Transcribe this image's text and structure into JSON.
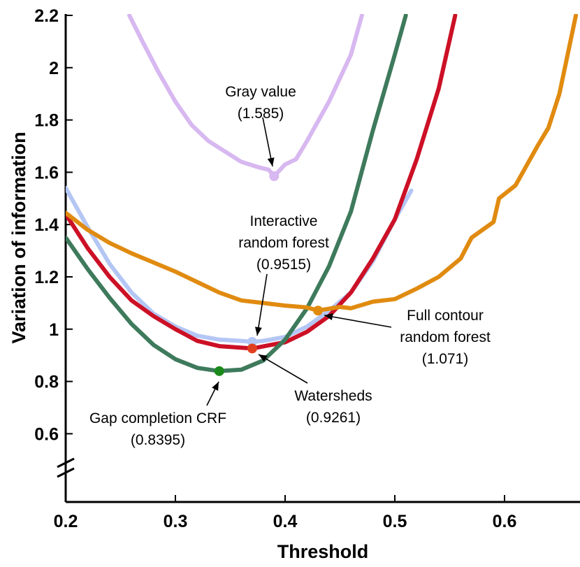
{
  "chart_data": {
    "type": "line",
    "title": "",
    "xlabel": "Threshold",
    "ylabel": "Variation of information",
    "xlim": [
      0.2,
      0.665
    ],
    "ylim": [
      0.5,
      2.2
    ],
    "axis_break": "y-axis break between 0.6 and the x-axis",
    "x_ticks": [
      "0.2",
      "0.3",
      "0.4",
      "0.5",
      "0.6"
    ],
    "y_ticks": [
      "0.6",
      "0.8",
      "1",
      "1.2",
      "1.4",
      "1.6",
      "1.8",
      "2",
      "2.2"
    ],
    "series": [
      {
        "name": "Gray value",
        "color": "#d8b8f0",
        "points": [
          [
            0.258,
            2.2
          ],
          [
            0.27,
            2.1
          ],
          [
            0.285,
            1.98
          ],
          [
            0.3,
            1.87
          ],
          [
            0.315,
            1.78
          ],
          [
            0.33,
            1.72
          ],
          [
            0.345,
            1.68
          ],
          [
            0.36,
            1.64
          ],
          [
            0.375,
            1.62
          ],
          [
            0.385,
            1.61
          ],
          [
            0.39,
            1.585
          ],
          [
            0.4,
            1.63
          ],
          [
            0.41,
            1.65
          ],
          [
            0.42,
            1.72
          ],
          [
            0.44,
            1.87
          ],
          [
            0.46,
            2.05
          ],
          [
            0.47,
            2.2
          ]
        ],
        "minimum": {
          "x": 0.39,
          "y": 1.585,
          "label": "Gray value",
          "value_label": "(1.585)"
        }
      },
      {
        "name": "Interactive random forest",
        "color": "#b4c6f4",
        "points": [
          [
            0.2,
            1.54
          ],
          [
            0.22,
            1.39
          ],
          [
            0.24,
            1.25
          ],
          [
            0.26,
            1.14
          ],
          [
            0.28,
            1.06
          ],
          [
            0.3,
            1.01
          ],
          [
            0.32,
            0.975
          ],
          [
            0.34,
            0.96
          ],
          [
            0.36,
            0.955
          ],
          [
            0.37,
            0.9515
          ],
          [
            0.38,
            0.955
          ],
          [
            0.4,
            0.97
          ],
          [
            0.42,
            1.01
          ],
          [
            0.44,
            1.07
          ],
          [
            0.46,
            1.14
          ],
          [
            0.48,
            1.26
          ],
          [
            0.5,
            1.42
          ],
          [
            0.515,
            1.53
          ]
        ],
        "minimum": {
          "x": 0.37,
          "y": 0.9515,
          "label": "Interactive random forest",
          "value_label": "(0.9515)"
        }
      },
      {
        "name": "Watersheds",
        "color": "#cc1026",
        "points": [
          [
            0.2,
            1.44
          ],
          [
            0.22,
            1.31
          ],
          [
            0.24,
            1.2
          ],
          [
            0.26,
            1.11
          ],
          [
            0.28,
            1.05
          ],
          [
            0.3,
            1.0
          ],
          [
            0.32,
            0.955
          ],
          [
            0.34,
            0.935
          ],
          [
            0.37,
            0.9261
          ],
          [
            0.4,
            0.95
          ],
          [
            0.42,
            0.99
          ],
          [
            0.44,
            1.05
          ],
          [
            0.46,
            1.14
          ],
          [
            0.48,
            1.27
          ],
          [
            0.5,
            1.42
          ],
          [
            0.52,
            1.65
          ],
          [
            0.54,
            1.92
          ],
          [
            0.555,
            2.2
          ]
        ],
        "minimum": {
          "x": 0.37,
          "y": 0.9261,
          "label": "Watersheds",
          "value_label": "(0.9261)"
        }
      },
      {
        "name": "Gap completion CRF",
        "color": "#3e7a5c",
        "points": [
          [
            0.2,
            1.35
          ],
          [
            0.22,
            1.23
          ],
          [
            0.24,
            1.12
          ],
          [
            0.26,
            1.02
          ],
          [
            0.28,
            0.94
          ],
          [
            0.3,
            0.885
          ],
          [
            0.32,
            0.852
          ],
          [
            0.34,
            0.8395
          ],
          [
            0.36,
            0.845
          ],
          [
            0.38,
            0.88
          ],
          [
            0.4,
            0.96
          ],
          [
            0.42,
            1.08
          ],
          [
            0.44,
            1.24
          ],
          [
            0.46,
            1.45
          ],
          [
            0.48,
            1.76
          ],
          [
            0.5,
            2.05
          ],
          [
            0.51,
            2.2
          ]
        ],
        "minimum": {
          "x": 0.34,
          "y": 0.8395,
          "label": "Gap completion CRF",
          "value_label": "(0.8395)"
        }
      },
      {
        "name": "Full contour random forest",
        "color": "#e08b10",
        "points": [
          [
            0.2,
            1.445
          ],
          [
            0.22,
            1.38
          ],
          [
            0.24,
            1.33
          ],
          [
            0.26,
            1.29
          ],
          [
            0.28,
            1.255
          ],
          [
            0.3,
            1.22
          ],
          [
            0.32,
            1.18
          ],
          [
            0.34,
            1.14
          ],
          [
            0.36,
            1.11
          ],
          [
            0.38,
            1.1
          ],
          [
            0.4,
            1.09
          ],
          [
            0.42,
            1.083
          ],
          [
            0.43,
            1.071
          ],
          [
            0.45,
            1.085
          ],
          [
            0.46,
            1.08
          ],
          [
            0.48,
            1.105
          ],
          [
            0.5,
            1.115
          ],
          [
            0.52,
            1.155
          ],
          [
            0.54,
            1.2
          ],
          [
            0.56,
            1.27
          ],
          [
            0.57,
            1.35
          ],
          [
            0.59,
            1.41
          ],
          [
            0.595,
            1.5
          ],
          [
            0.61,
            1.55
          ],
          [
            0.63,
            1.7
          ],
          [
            0.64,
            1.77
          ],
          [
            0.65,
            1.9
          ],
          [
            0.655,
            2.0
          ],
          [
            0.665,
            2.2
          ]
        ],
        "minimum": {
          "x": 0.43,
          "y": 1.071,
          "label": "Full contour random forest",
          "value_label": "(1.071)"
        }
      }
    ],
    "annotations": [
      {
        "lines": [
          "Gray value",
          "(1.585)"
        ]
      },
      {
        "lines": [
          "Interactive",
          "random forest",
          "(0.9515)"
        ]
      },
      {
        "lines": [
          "Full contour",
          "random forest",
          "(1.071)"
        ]
      },
      {
        "lines": [
          "Watersheds",
          "(0.9261)"
        ]
      },
      {
        "lines": [
          "Gap completion CRF",
          "(0.8395)"
        ]
      }
    ]
  }
}
